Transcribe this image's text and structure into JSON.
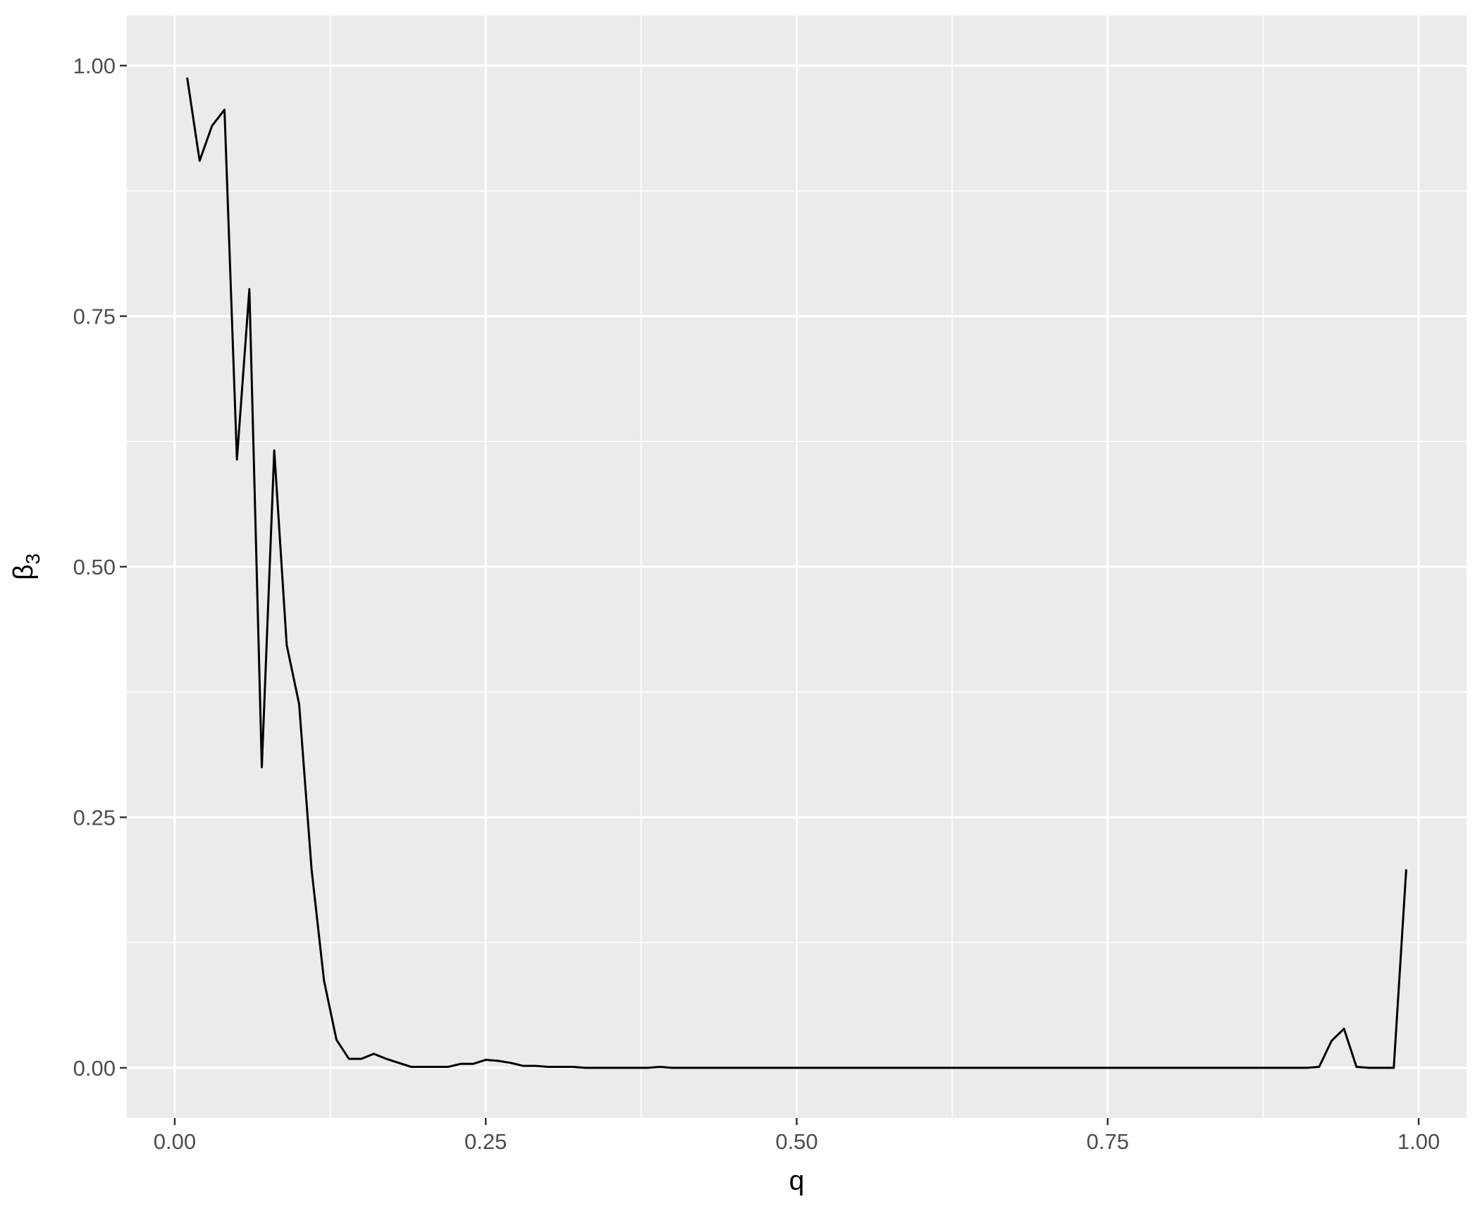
{
  "chart_data": {
    "type": "line",
    "title": "",
    "xlabel": "q",
    "ylabel": "β3",
    "ylabel_parts": {
      "symbol": "β",
      "subscript": "3"
    },
    "xlim": [
      -0.0385,
      1.0385
    ],
    "ylim": [
      -0.05,
      1.05
    ],
    "x_ticks": [
      {
        "value": 0.0,
        "label": "0.00"
      },
      {
        "value": 0.25,
        "label": "0.25"
      },
      {
        "value": 0.5,
        "label": "0.50"
      },
      {
        "value": 0.75,
        "label": "0.75"
      },
      {
        "value": 1.0,
        "label": "1.00"
      }
    ],
    "y_ticks": [
      {
        "value": 0.0,
        "label": "0.00"
      },
      {
        "value": 0.25,
        "label": "0.25"
      },
      {
        "value": 0.5,
        "label": "0.50"
      },
      {
        "value": 0.75,
        "label": "0.75"
      },
      {
        "value": 1.0,
        "label": "1.00"
      }
    ],
    "x_minor_breaks": [
      0.125,
      0.375,
      0.625,
      0.875
    ],
    "y_minor_breaks": [
      0.125,
      0.375,
      0.625,
      0.875
    ],
    "grid": true,
    "legend": "none",
    "colors": {
      "panel": "#ebebeb",
      "grid": "#ffffff",
      "line": "#000000",
      "tick_text": "#4d4d4d"
    },
    "series": [
      {
        "x": [
          0.01,
          0.02,
          0.03,
          0.04,
          0.05,
          0.06,
          0.07,
          0.08,
          0.09,
          0.1,
          0.11,
          0.12,
          0.13,
          0.14,
          0.15,
          0.16,
          0.17,
          0.18,
          0.19,
          0.2,
          0.21,
          0.22,
          0.23,
          0.24,
          0.25,
          0.26,
          0.27,
          0.28,
          0.29,
          0.3,
          0.31,
          0.32,
          0.33,
          0.34,
          0.35,
          0.36,
          0.37,
          0.38,
          0.39,
          0.4,
          0.45,
          0.5,
          0.55,
          0.6,
          0.65,
          0.7,
          0.75,
          0.8,
          0.85,
          0.9,
          0.91,
          0.92,
          0.93,
          0.94,
          0.95,
          0.96,
          0.97,
          0.98,
          0.99
        ],
        "y": [
          0.988,
          0.905,
          0.94,
          0.956,
          0.607,
          0.777,
          0.3,
          0.616,
          0.422,
          0.363,
          0.198,
          0.087,
          0.028,
          0.009,
          0.009,
          0.014,
          0.009,
          0.005,
          0.001,
          0.001,
          0.001,
          0.001,
          0.004,
          0.004,
          0.008,
          0.007,
          0.005,
          0.002,
          0.002,
          0.001,
          0.001,
          0.001,
          0.0,
          0.0,
          0.0,
          0.0,
          0.0,
          0.0,
          0.001,
          0.0,
          0.0,
          0.0,
          0.0,
          0.0,
          0.0,
          0.0,
          0.0,
          0.0,
          0.0,
          0.0,
          0.0,
          0.001,
          0.027,
          0.039,
          0.001,
          0.0,
          0.0,
          0.0,
          0.198
        ]
      }
    ]
  }
}
